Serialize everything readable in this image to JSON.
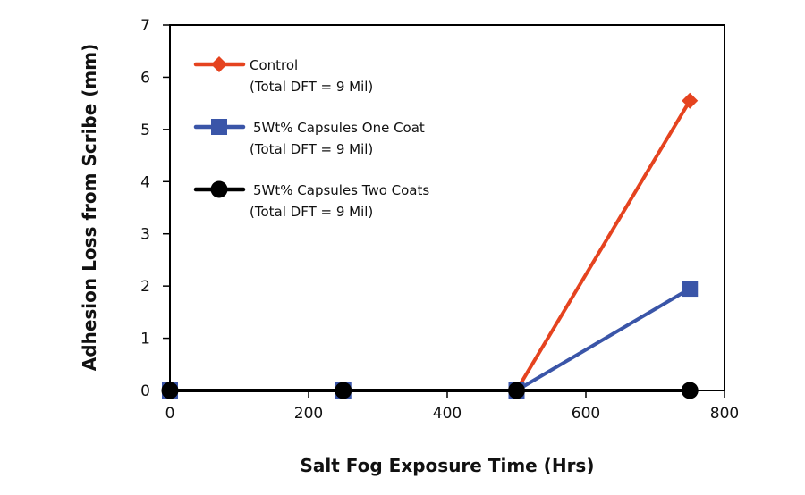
{
  "chart_data": {
    "type": "line",
    "title": "",
    "xlabel": "Salt Fog Exposure Time (Hrs)",
    "ylabel": "Adhesion Loss from Scribe (mm)",
    "xlim": [
      0,
      800
    ],
    "ylim": [
      0,
      7
    ],
    "xticks": [
      0,
      200,
      400,
      600,
      800
    ],
    "yticks": [
      0,
      1,
      2,
      3,
      4,
      5,
      6,
      7
    ],
    "grid": false,
    "legend_placement": "top-left",
    "x": [
      0,
      250,
      500,
      750
    ],
    "series": [
      {
        "name": "Control",
        "sub": "(Total DFT = 9 Mil)",
        "color": "#e5431f",
        "marker": "diamond",
        "values": [
          0,
          0,
          0,
          5.55
        ]
      },
      {
        "name": "5Wt% Capsules One Coat",
        "sub": "(Total DFT = 9 Mil)",
        "color": "#3a55a8",
        "marker": "square",
        "values": [
          0,
          0,
          0,
          1.95
        ]
      },
      {
        "name": "5Wt% Capsules Two Coats",
        "sub": "(Total DFT = 9 Mil)",
        "color": "#000000",
        "marker": "circle",
        "values": [
          0,
          0,
          0,
          0
        ]
      }
    ]
  }
}
